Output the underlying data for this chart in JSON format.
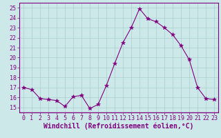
{
  "x": [
    0,
    1,
    2,
    3,
    4,
    5,
    6,
    7,
    8,
    9,
    10,
    11,
    12,
    13,
    14,
    15,
    16,
    17,
    18,
    19,
    20,
    21,
    22,
    23
  ],
  "y": [
    17.0,
    16.8,
    15.9,
    15.8,
    15.7,
    15.1,
    16.1,
    16.2,
    14.9,
    15.3,
    17.2,
    19.4,
    21.5,
    23.0,
    24.9,
    23.9,
    23.6,
    23.0,
    22.3,
    21.2,
    19.8,
    17.0,
    15.9,
    15.8
  ],
  "line_color": "#800080",
  "marker": "*",
  "marker_size": 4,
  "bg_color": "#cce8e8",
  "grid_color": "#aacece",
  "xlabel": "Windchill (Refroidissement éolien,°C)",
  "xlabel_fontsize": 7,
  "ylim": [
    14.5,
    25.5
  ],
  "xlim": [
    -0.5,
    23.5
  ],
  "yticks": [
    15,
    16,
    17,
    18,
    19,
    20,
    21,
    22,
    23,
    24,
    25
  ],
  "xticks": [
    0,
    1,
    2,
    3,
    4,
    5,
    6,
    7,
    8,
    9,
    10,
    11,
    12,
    13,
    14,
    15,
    16,
    17,
    18,
    19,
    20,
    21,
    22,
    23
  ],
  "tick_fontsize": 6,
  "tick_color": "#800080",
  "spine_color": "#800080",
  "label_color": "#800080"
}
